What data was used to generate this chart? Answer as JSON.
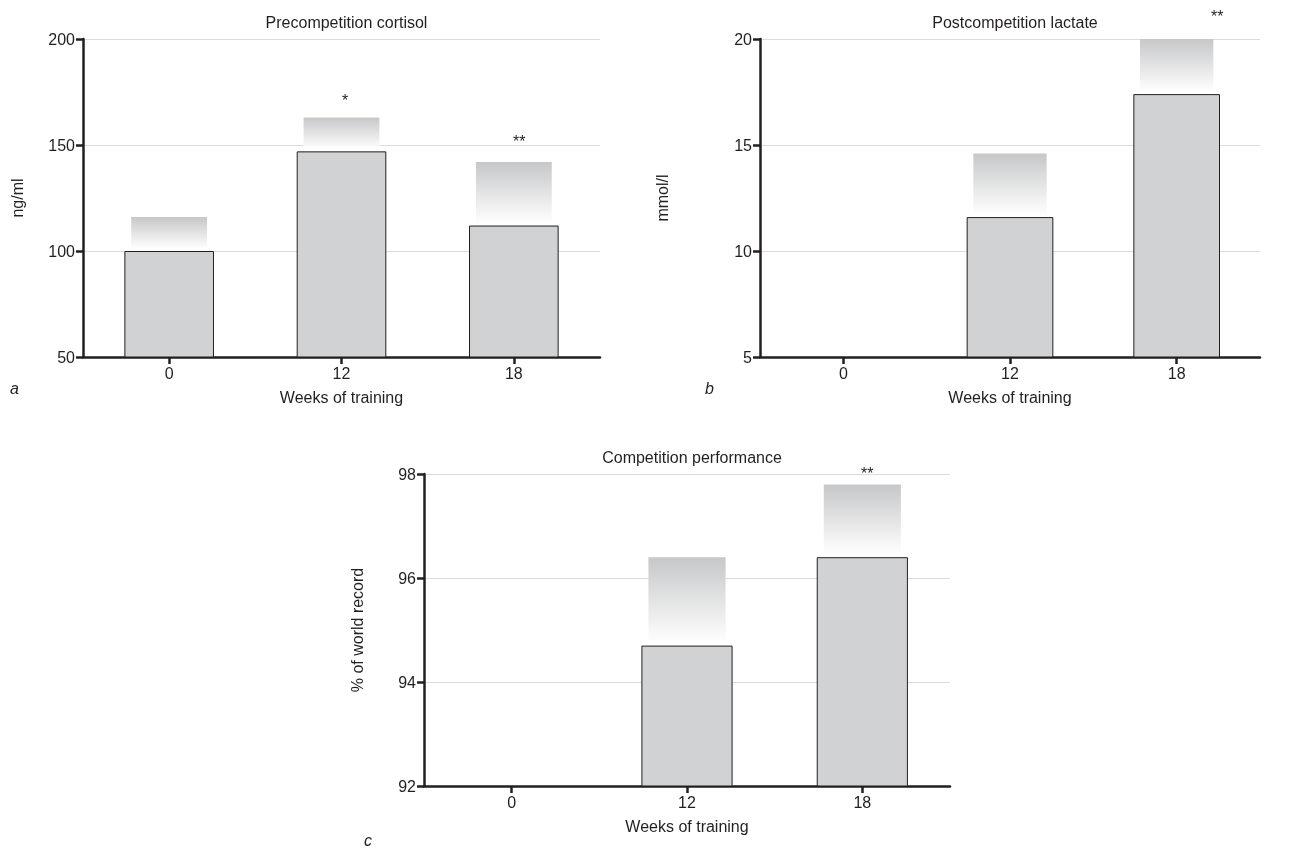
{
  "chart_data": [
    {
      "type": "bar",
      "title": "Precompetition cortisol",
      "xlabel": "Weeks of training",
      "ylabel": "ng/ml",
      "categories": [
        "0",
        "12",
        "18"
      ],
      "series": [
        {
          "color": "#d1d2d4",
          "values": [
            100,
            147,
            112
          ]
        },
        {
          "color": "#c6c7c9",
          "base": [
            100,
            147,
            112
          ],
          "values": [
            16,
            16,
            30
          ]
        }
      ],
      "ylim": [
        50,
        200
      ],
      "yticks": [
        50,
        100,
        150,
        200
      ],
      "grid": "y",
      "annotations": [
        "*",
        "**",
        "a"
      ]
    },
    {
      "type": "bar",
      "title": "Postcompetition lactate",
      "xlabel": "Weeks of training",
      "ylabel": "mmol/l",
      "categories": [
        "0",
        "12",
        "18"
      ],
      "series": [
        {
          "color": "#d1d2d4",
          "values": [
            null,
            11.6,
            17.4
          ]
        },
        {
          "color": "#c6c7c9",
          "base": [
            null,
            11.6,
            17.4
          ],
          "values": [
            null,
            3,
            2.6
          ]
        }
      ],
      "ylim": [
        5,
        20
      ],
      "yticks": [
        5,
        10,
        15,
        20
      ],
      "grid": "y",
      "annotations": [
        "**",
        "b"
      ]
    },
    {
      "type": "bar",
      "title": "Competition performance",
      "xlabel": "Weeks of training",
      "ylabel": "% of world record",
      "categories": [
        "0",
        "12",
        "18"
      ],
      "series": [
        {
          "color": "#d1d2d4",
          "values": [
            null,
            94.7,
            96.4
          ]
        },
        {
          "color": "#c6c7c9",
          "base": [
            null,
            94.7,
            96.4
          ],
          "values": [
            null,
            1.7,
            1.4
          ]
        }
      ],
      "ylim": [
        92,
        98
      ],
      "yticks": [
        92,
        94,
        96,
        98
      ],
      "grid": "y",
      "annotations": [
        "**",
        "c"
      ]
    }
  ]
}
